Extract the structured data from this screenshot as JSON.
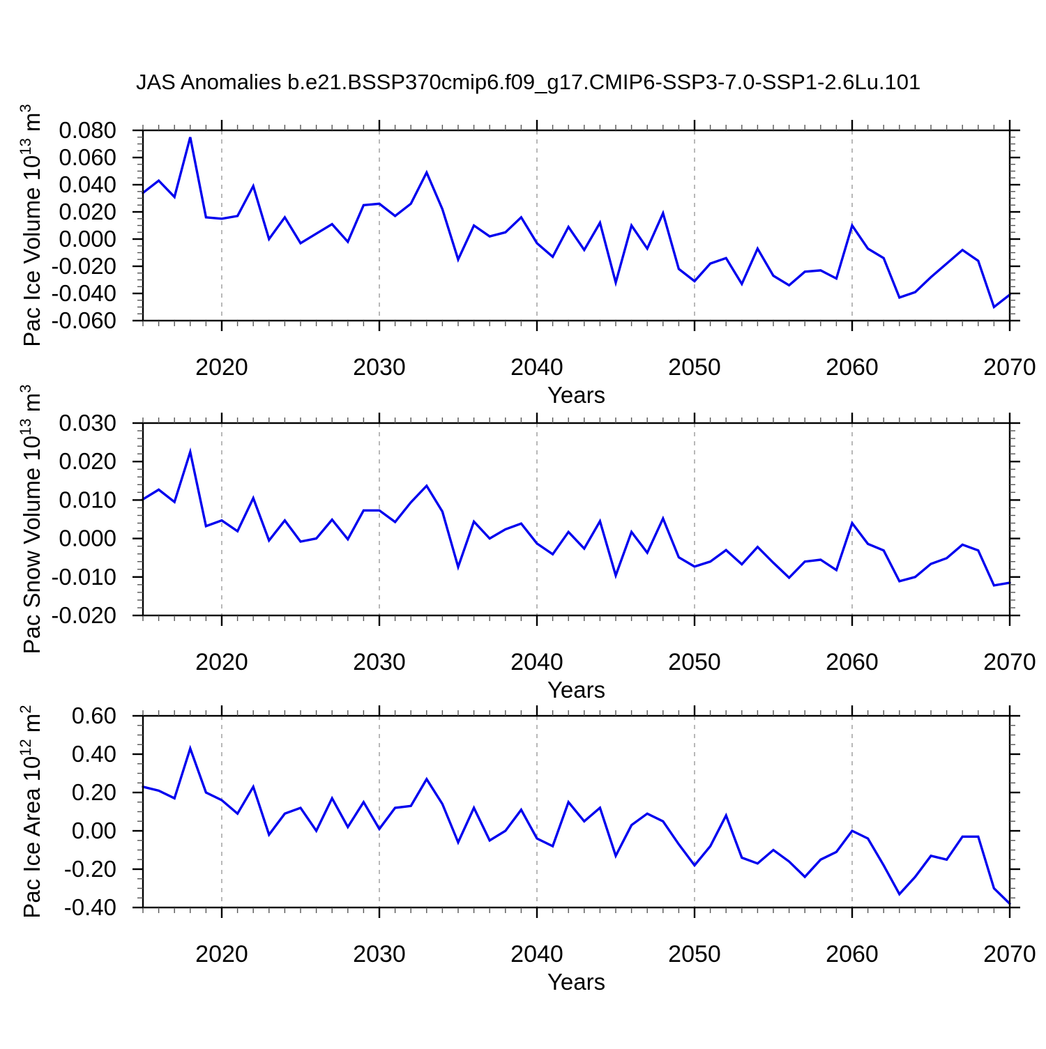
{
  "title": "JAS Anomalies b.e21.BSSP370cmip6.f09_g17.CMIP6-SSP3-7.0-SSP1-2.6Lu.101",
  "colors": {
    "line": "#0000ee",
    "frame": "#000000",
    "grid": "#999999",
    "minor_tick": "#555555",
    "major_tick": "#000000",
    "text": "#000000",
    "background": "#ffffff"
  },
  "x_axis": {
    "label": "Years",
    "range": [
      2015,
      2070
    ],
    "major_ticks": [
      2020,
      2030,
      2040,
      2050,
      2060,
      2070
    ],
    "gridline_years": [
      2020,
      2030,
      2040,
      2050,
      2060
    ],
    "minor_step": 1
  },
  "chart_data": [
    {
      "type": "line",
      "name": "pac-ice-volume",
      "ylabel": "Pac Ice Volume 10^13 m^3",
      "ylabel_parts": [
        {
          "t": "Pac Ice Volume 10"
        },
        {
          "t": "13",
          "sup": true
        },
        {
          "t": " m"
        },
        {
          "t": "3",
          "sup": true
        }
      ],
      "xlabel": "Years",
      "ylim": [
        -0.06,
        0.08
      ],
      "ytick_step": 0.02,
      "yminor_step": 0.005,
      "ytick_decimals": 3,
      "grid": "vertical-dashed",
      "legend": "none",
      "x": [
        2015,
        2016,
        2017,
        2018,
        2019,
        2020,
        2021,
        2022,
        2023,
        2024,
        2025,
        2026,
        2027,
        2028,
        2029,
        2030,
        2031,
        2032,
        2033,
        2034,
        2035,
        2036,
        2037,
        2038,
        2039,
        2040,
        2041,
        2042,
        2043,
        2044,
        2045,
        2046,
        2047,
        2048,
        2049,
        2050,
        2051,
        2052,
        2053,
        2054,
        2055,
        2056,
        2057,
        2058,
        2059,
        2060,
        2061,
        2062,
        2063,
        2064,
        2065,
        2066,
        2067,
        2068,
        2069,
        2070
      ],
      "values": [
        0.034,
        0.043,
        0.031,
        0.075,
        0.016,
        0.015,
        0.017,
        0.039,
        0.0,
        0.016,
        -0.003,
        0.004,
        0.011,
        -0.002,
        0.025,
        0.026,
        0.017,
        0.026,
        0.049,
        0.022,
        -0.015,
        0.01,
        0.002,
        0.005,
        0.016,
        -0.003,
        -0.013,
        0.009,
        -0.008,
        0.012,
        -0.032,
        0.01,
        -0.007,
        0.019,
        -0.022,
        -0.031,
        -0.018,
        -0.014,
        -0.033,
        -0.007,
        -0.027,
        -0.034,
        -0.024,
        -0.023,
        -0.029,
        0.01,
        -0.007,
        -0.014,
        -0.043,
        -0.039,
        -0.028,
        -0.018,
        -0.008,
        -0.016,
        -0.05,
        -0.041
      ]
    },
    {
      "type": "line",
      "name": "pac-snow-volume",
      "ylabel": "Pac Snow Volume 10^13 m^3",
      "ylabel_parts": [
        {
          "t": "Pac Snow Volume 10"
        },
        {
          "t": "13",
          "sup": true
        },
        {
          "t": " m"
        },
        {
          "t": "3",
          "sup": true
        }
      ],
      "xlabel": "Years",
      "ylim": [
        -0.02,
        0.03
      ],
      "ytick_step": 0.01,
      "yminor_step": 0.002,
      "ytick_decimals": 3,
      "grid": "vertical-dashed",
      "legend": "none",
      "x": [
        2015,
        2016,
        2017,
        2018,
        2019,
        2020,
        2021,
        2022,
        2023,
        2024,
        2025,
        2026,
        2027,
        2028,
        2029,
        2030,
        2031,
        2032,
        2033,
        2034,
        2035,
        2036,
        2037,
        2038,
        2039,
        2040,
        2041,
        2042,
        2043,
        2044,
        2045,
        2046,
        2047,
        2048,
        2049,
        2050,
        2051,
        2052,
        2053,
        2054,
        2055,
        2056,
        2057,
        2058,
        2059,
        2060,
        2061,
        2062,
        2063,
        2064,
        2065,
        2066,
        2067,
        2068,
        2069,
        2070
      ],
      "values": [
        0.0102,
        0.0127,
        0.0095,
        0.0225,
        0.0032,
        0.0047,
        0.0019,
        0.0105,
        -0.0005,
        0.0047,
        -0.0008,
        0.0,
        0.0049,
        -0.0002,
        0.0073,
        0.0073,
        0.0043,
        0.0094,
        0.0137,
        0.007,
        -0.0074,
        0.0044,
        0.0,
        0.0024,
        0.0039,
        -0.0013,
        -0.0041,
        0.0017,
        -0.0026,
        0.0045,
        -0.0096,
        0.0017,
        -0.0037,
        0.0052,
        -0.0049,
        -0.0073,
        -0.006,
        -0.003,
        -0.0067,
        -0.0022,
        -0.0063,
        -0.0102,
        -0.006,
        -0.0055,
        -0.0082,
        0.004,
        -0.0014,
        -0.0031,
        -0.0111,
        -0.01,
        -0.0066,
        -0.0051,
        -0.0016,
        -0.0031,
        -0.0122,
        -0.0115
      ]
    },
    {
      "type": "line",
      "name": "pac-ice-area",
      "ylabel": "Pac Ice Area 10^12 m^2",
      "ylabel_parts": [
        {
          "t": "Pac Ice Area 10"
        },
        {
          "t": "12",
          "sup": true
        },
        {
          "t": " m"
        },
        {
          "t": "2",
          "sup": true
        }
      ],
      "xlabel": "Years",
      "ylim": [
        -0.4,
        0.6
      ],
      "ytick_step": 0.2,
      "yminor_step": 0.05,
      "ytick_decimals": 2,
      "grid": "vertical-dashed",
      "legend": "none",
      "x": [
        2015,
        2016,
        2017,
        2018,
        2019,
        2020,
        2021,
        2022,
        2023,
        2024,
        2025,
        2026,
        2027,
        2028,
        2029,
        2030,
        2031,
        2032,
        2033,
        2034,
        2035,
        2036,
        2037,
        2038,
        2039,
        2040,
        2041,
        2042,
        2043,
        2044,
        2045,
        2046,
        2047,
        2048,
        2049,
        2050,
        2051,
        2052,
        2053,
        2054,
        2055,
        2056,
        2057,
        2058,
        2059,
        2060,
        2061,
        2062,
        2063,
        2064,
        2065,
        2066,
        2067,
        2068,
        2069,
        2070
      ],
      "values": [
        0.23,
        0.21,
        0.17,
        0.43,
        0.2,
        0.16,
        0.09,
        0.23,
        -0.02,
        0.09,
        0.12,
        0.0,
        0.17,
        0.02,
        0.15,
        0.01,
        0.12,
        0.13,
        0.27,
        0.14,
        -0.06,
        0.12,
        -0.05,
        0.0,
        0.11,
        -0.04,
        -0.08,
        0.15,
        0.05,
        0.12,
        -0.13,
        0.03,
        0.09,
        0.05,
        -0.07,
        -0.18,
        -0.08,
        0.08,
        -0.14,
        -0.17,
        -0.1,
        -0.16,
        -0.24,
        -0.15,
        -0.11,
        0.0,
        -0.04,
        -0.18,
        -0.33,
        -0.24,
        -0.13,
        -0.15,
        -0.03,
        -0.03,
        -0.3,
        -0.38
      ]
    }
  ]
}
